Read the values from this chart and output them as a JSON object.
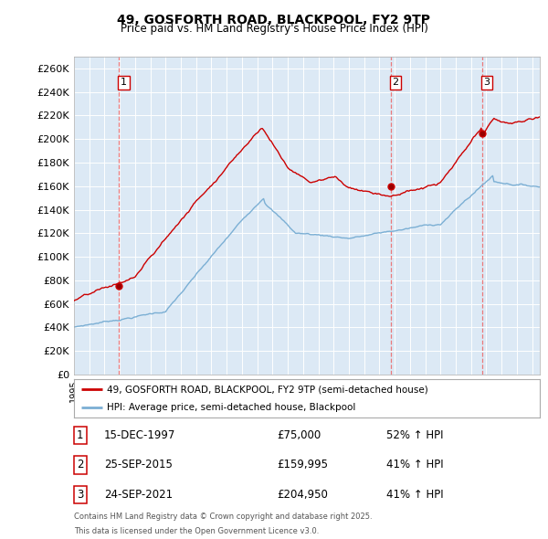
{
  "title1": "49, GOSFORTH ROAD, BLACKPOOL, FY2 9TP",
  "title2": "Price paid vs. HM Land Registry's House Price Index (HPI)",
  "legend_red": "49, GOSFORTH ROAD, BLACKPOOL, FY2 9TP (semi-detached house)",
  "legend_blue": "HPI: Average price, semi-detached house, Blackpool",
  "transactions": [
    {
      "num": 1,
      "date": "15-DEC-1997",
      "price": 75000,
      "pct": "52%",
      "x": 1997.96
    },
    {
      "num": 2,
      "date": "25-SEP-2015",
      "price": 159995,
      "pct": "41%",
      "x": 2015.73
    },
    {
      "num": 3,
      "date": "24-SEP-2021",
      "price": 204950,
      "pct": "41%",
      "x": 2021.73
    }
  ],
  "footnote1": "Contains HM Land Registry data © Crown copyright and database right 2025.",
  "footnote2": "This data is licensed under the Open Government Licence v3.0.",
  "ylim_max": 270000,
  "yticks": [
    0,
    20000,
    40000,
    60000,
    80000,
    100000,
    120000,
    140000,
    160000,
    180000,
    200000,
    220000,
    240000,
    260000
  ],
  "xlim_min": 1995.0,
  "xlim_max": 2025.5,
  "background_color": "#ffffff",
  "plot_bg_color": "#dce9f5",
  "grid_color": "#ffffff",
  "red_color": "#cc0000",
  "blue_color": "#7bafd4",
  "dashed_color": "#ee6666"
}
